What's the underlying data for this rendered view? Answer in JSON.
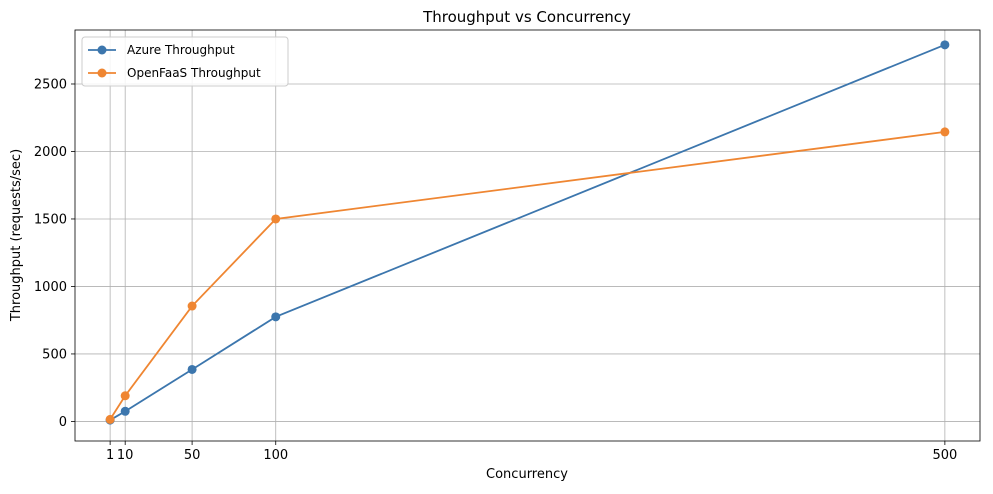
{
  "chart_data": {
    "type": "line",
    "title": "Throughput vs Concurrency",
    "xlabel": "Concurrency",
    "ylabel": "Throughput (requests/sec)",
    "x": [
      1,
      10,
      50,
      100,
      500
    ],
    "xticks": [
      "1",
      "10",
      "50",
      "100",
      "500"
    ],
    "xlim": [
      -20,
      521
    ],
    "ylim": [
      -145,
      2900
    ],
    "yticks": [
      0,
      500,
      1000,
      1500,
      2000,
      2500
    ],
    "grid": true,
    "legend_position": "top-left",
    "series": [
      {
        "name": "Azure Throughput",
        "color": "#3c76ad",
        "values": [
          10,
          75,
          385,
          775,
          2790
        ]
      },
      {
        "name": "OpenFaaS Throughput",
        "color": "#ef8632",
        "values": [
          15,
          190,
          855,
          1500,
          2145
        ]
      }
    ]
  }
}
